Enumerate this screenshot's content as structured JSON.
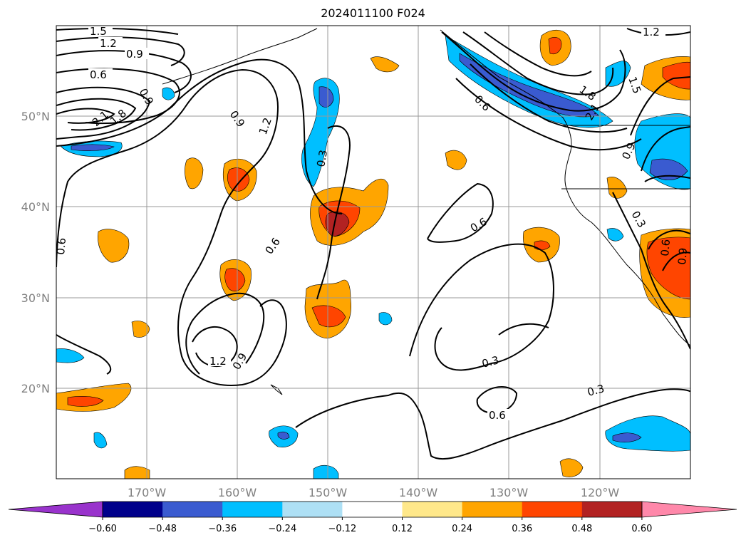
{
  "title": "2024011100 F024",
  "map": {
    "lon_labels": [
      "170°W",
      "160°W",
      "150°W",
      "140°W",
      "130°W",
      "120°W"
    ],
    "lat_labels": [
      "50°N",
      "40°N",
      "30°N",
      "20°N"
    ],
    "contour_labels": [
      "1.5",
      "1.2",
      "0.9",
      "0.6",
      "0.9",
      "0.9",
      "1.2",
      "0.3",
      "0.6",
      "0.6",
      "1.2",
      "0.9",
      "0.6",
      "0.3",
      "0.6",
      "0.3",
      "0.6",
      "1.2",
      "1.8",
      "2.1",
      "1.5",
      "0.9",
      "0.3",
      "0.6",
      "0.9",
      "2.1",
      "1.8"
    ]
  },
  "colorbar": {
    "tick_labels": [
      "−0.60",
      "−0.48",
      "−0.36",
      "−0.24",
      "−0.12",
      "0.12",
      "0.24",
      "0.36",
      "0.48",
      "0.60"
    ],
    "colors": [
      "#9933cc",
      "#00008b",
      "#3a5bd0",
      "#00bfff",
      "#aee0f5",
      "#ffffff",
      "#ffe88a",
      "#ffa500",
      "#ff4500",
      "#b22222",
      "#ff88aa"
    ]
  }
}
